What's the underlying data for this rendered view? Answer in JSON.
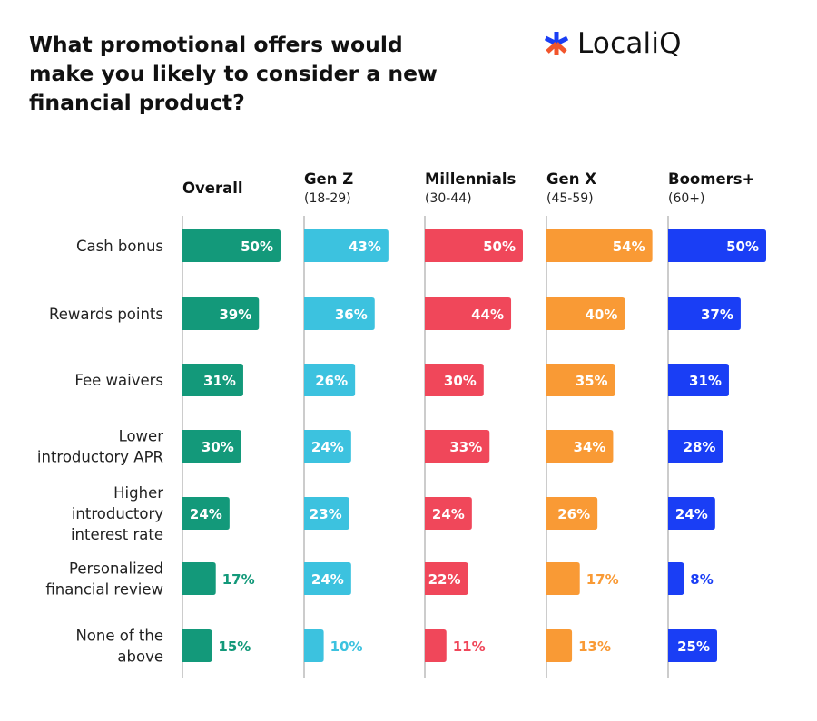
{
  "brand": {
    "name": "LocaliQ"
  },
  "chart_data": {
    "type": "bar",
    "orientation": "horizontal",
    "layout": "small-multiples",
    "title": "What promotional offers would make you likely to consider a new financial product?",
    "categories": [
      "Cash bonus",
      "Rewards points",
      "Fee waivers",
      "Lower introductory APR",
      "Higher introductory interest rate",
      "Personalized financial review",
      "None of the above"
    ],
    "category_lines": [
      [
        "Cash bonus"
      ],
      [
        "Rewards points"
      ],
      [
        "Fee waivers"
      ],
      [
        "Lower",
        "introductory APR"
      ],
      [
        "Higher",
        "introductory",
        "interest rate"
      ],
      [
        "Personalized",
        "financial review"
      ],
      [
        "None of the",
        "above"
      ]
    ],
    "unit": "%",
    "xlim": [
      0,
      60
    ],
    "series": [
      {
        "name": "Overall",
        "subtitle": "",
        "color": "#13997a",
        "values": [
          50,
          39,
          31,
          30,
          24,
          17,
          15
        ]
      },
      {
        "name": "Gen Z",
        "subtitle": "(18-29)",
        "color": "#3cc2df",
        "values": [
          43,
          36,
          26,
          24,
          23,
          24,
          10
        ]
      },
      {
        "name": "Millennials",
        "subtitle": "(30-44)",
        "color": "#f0475a",
        "values": [
          50,
          44,
          30,
          33,
          24,
          22,
          11
        ]
      },
      {
        "name": "Gen X",
        "subtitle": "(45-59)",
        "color": "#f99a35",
        "values": [
          54,
          40,
          35,
          34,
          26,
          17,
          13
        ]
      },
      {
        "name": "Boomers+",
        "subtitle": "(60+)",
        "color": "#1a3ef5",
        "values": [
          50,
          37,
          31,
          28,
          24,
          8,
          25
        ]
      }
    ]
  }
}
